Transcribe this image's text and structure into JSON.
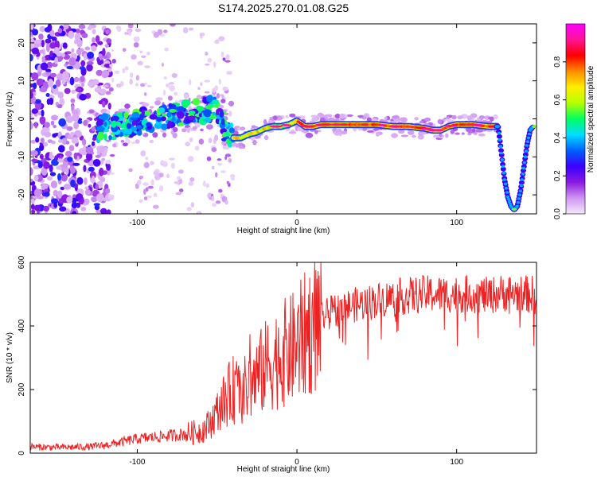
{
  "title": "S174.2025.270.01.08.G25",
  "chart_data": [
    {
      "type": "heatmap",
      "title": "",
      "xlabel": "Height of straight line (km)",
      "ylabel": "Frequency (Hz)",
      "xlim": [
        -167,
        150
      ],
      "ylim": [
        -25,
        25
      ],
      "xticks": [
        -100,
        0,
        100
      ],
      "xtick_labels": [
        "-100",
        "0",
        "100"
      ],
      "yticks": [
        -20,
        -10,
        0,
        10,
        20
      ],
      "ytick_labels": [
        "-20",
        "-10",
        "0",
        "10",
        "20"
      ],
      "colorbar": {
        "label": "Normalized spectral amplitude",
        "range": [
          0,
          1
        ],
        "ticks": [
          0.0,
          0.2,
          0.4,
          0.6,
          0.8
        ],
        "tick_labels": [
          "0.0",
          "0.2",
          "0.4",
          "0.6",
          "0.8"
        ],
        "colors": [
          "#f3e8fb",
          "#cf96f2",
          "#8a19e0",
          "#3a00ff",
          "#0060ff",
          "#00ddff",
          "#00ff60",
          "#b6ff00",
          "#ffee00",
          "#ff8c00",
          "#ff0000",
          "#ff1493",
          "#ff00ff"
        ]
      },
      "ridge": {
        "x": [
          -125,
          -110,
          -100,
          -90,
          -80,
          -70,
          -60,
          -50,
          -45,
          -40,
          -35,
          -30,
          -25,
          -20,
          -15,
          -10,
          -5,
          0,
          5,
          10,
          15,
          20,
          30,
          40,
          50,
          60,
          70,
          80,
          85,
          90,
          95,
          100,
          110,
          120,
          126
        ],
        "y": [
          -2.5,
          -2.0,
          -1.0,
          0.0,
          1.0,
          1.5,
          2.0,
          3.0,
          -3.0,
          -5.0,
          -5.0,
          -4.0,
          -3.5,
          -2.5,
          -2.0,
          -2.0,
          -1.5,
          -0.5,
          -2.0,
          -2.0,
          -1.5,
          -1.5,
          -1.5,
          -1.5,
          -1.5,
          -2.0,
          -2.0,
          -2.5,
          -3.0,
          -3.0,
          -2.0,
          -1.5,
          -1.5,
          -2.0,
          -2.0
        ]
      },
      "dip": {
        "x": [
          126,
          128,
          130,
          132,
          134,
          136,
          138,
          140,
          142,
          144,
          146,
          148
        ],
        "y": [
          -2.0,
          -9.0,
          -16.0,
          -20.5,
          -23.0,
          -24.0,
          -23.0,
          -19.0,
          -13.0,
          -7.0,
          -3.0,
          -2.0
        ]
      }
    },
    {
      "type": "line",
      "title": "",
      "xlabel": "Height of straight line (km)",
      "ylabel": "SNR (10 * v/v)",
      "xlim": [
        -167,
        150
      ],
      "ylim": [
        0,
        600
      ],
      "xticks": [
        -100,
        0,
        100
      ],
      "xtick_labels": [
        "-100",
        "0",
        "100"
      ],
      "yticks": [
        0,
        200,
        400,
        600
      ],
      "ytick_labels": [
        "0",
        "200",
        "400",
        "600"
      ],
      "color": "#ee2222",
      "series": [
        {
          "name": "SNR",
          "x": [
            -167,
            -150,
            -130,
            -120,
            -110,
            -100,
            -90,
            -80,
            -70,
            -60,
            -55,
            -50,
            -45,
            -40,
            -35,
            -30,
            -25,
            -20,
            -15,
            -10,
            -5,
            0,
            5,
            10,
            15,
            20,
            25,
            30,
            40,
            50,
            60,
            70,
            80,
            90,
            100,
            110,
            120,
            130,
            140,
            150
          ],
          "y": [
            20,
            18,
            20,
            25,
            35,
            45,
            50,
            55,
            60,
            70,
            90,
            130,
            170,
            200,
            190,
            210,
            240,
            270,
            290,
            310,
            320,
            340,
            370,
            400,
            420,
            440,
            450,
            460,
            470,
            480,
            490,
            495,
            500,
            500,
            500,
            500,
            495,
            505,
            500,
            500
          ]
        }
      ]
    }
  ]
}
